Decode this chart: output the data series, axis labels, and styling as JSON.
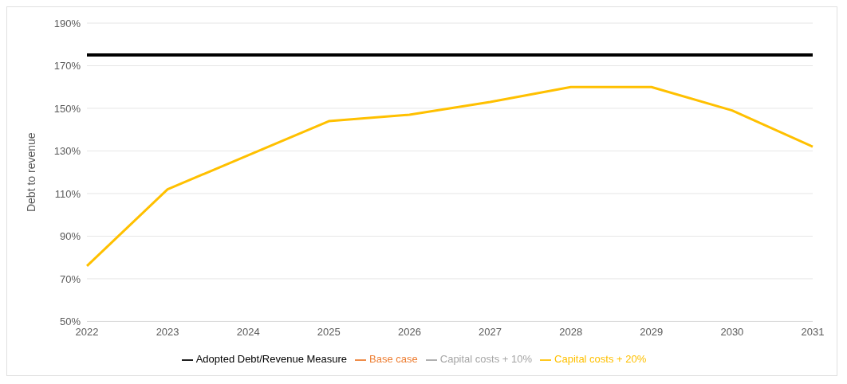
{
  "chart_data": {
    "type": "line",
    "ylabel": "Debt to revenue",
    "categories": [
      "2022",
      "2023",
      "2024",
      "2025",
      "2026",
      "2027",
      "2028",
      "2029",
      "2030",
      "2031"
    ],
    "series": [
      {
        "name": "Adopted Debt/Revenue Measure",
        "color": "#000000",
        "values": [
          175,
          175,
          175,
          175,
          175,
          175,
          175,
          175,
          175,
          175
        ]
      },
      {
        "name": "Base case",
        "color": "#ed7d31",
        "values": [
          null,
          null,
          null,
          null,
          null,
          null,
          null,
          null,
          null,
          null
        ]
      },
      {
        "name": "Capital costs + 10%",
        "color": "#a5a5a5",
        "values": [
          null,
          null,
          null,
          null,
          null,
          null,
          null,
          null,
          null,
          null
        ]
      },
      {
        "name": "Capital costs + 20%",
        "color": "#ffc000",
        "values": [
          76,
          112,
          128,
          144,
          147,
          153,
          160,
          160,
          149,
          132
        ]
      }
    ],
    "ylim": [
      50,
      190
    ],
    "yticks": [
      {
        "value": 50,
        "label": "50%"
      },
      {
        "value": 70,
        "label": "70%"
      },
      {
        "value": 90,
        "label": "90%"
      },
      {
        "value": 110,
        "label": "110%"
      },
      {
        "value": 130,
        "label": "130%"
      },
      {
        "value": 150,
        "label": "150%"
      },
      {
        "value": 170,
        "label": "170%"
      },
      {
        "value": 190,
        "label": "190%"
      }
    ],
    "grid": "y",
    "legend": "bottom",
    "marker": "none",
    "line_style": "solid"
  }
}
